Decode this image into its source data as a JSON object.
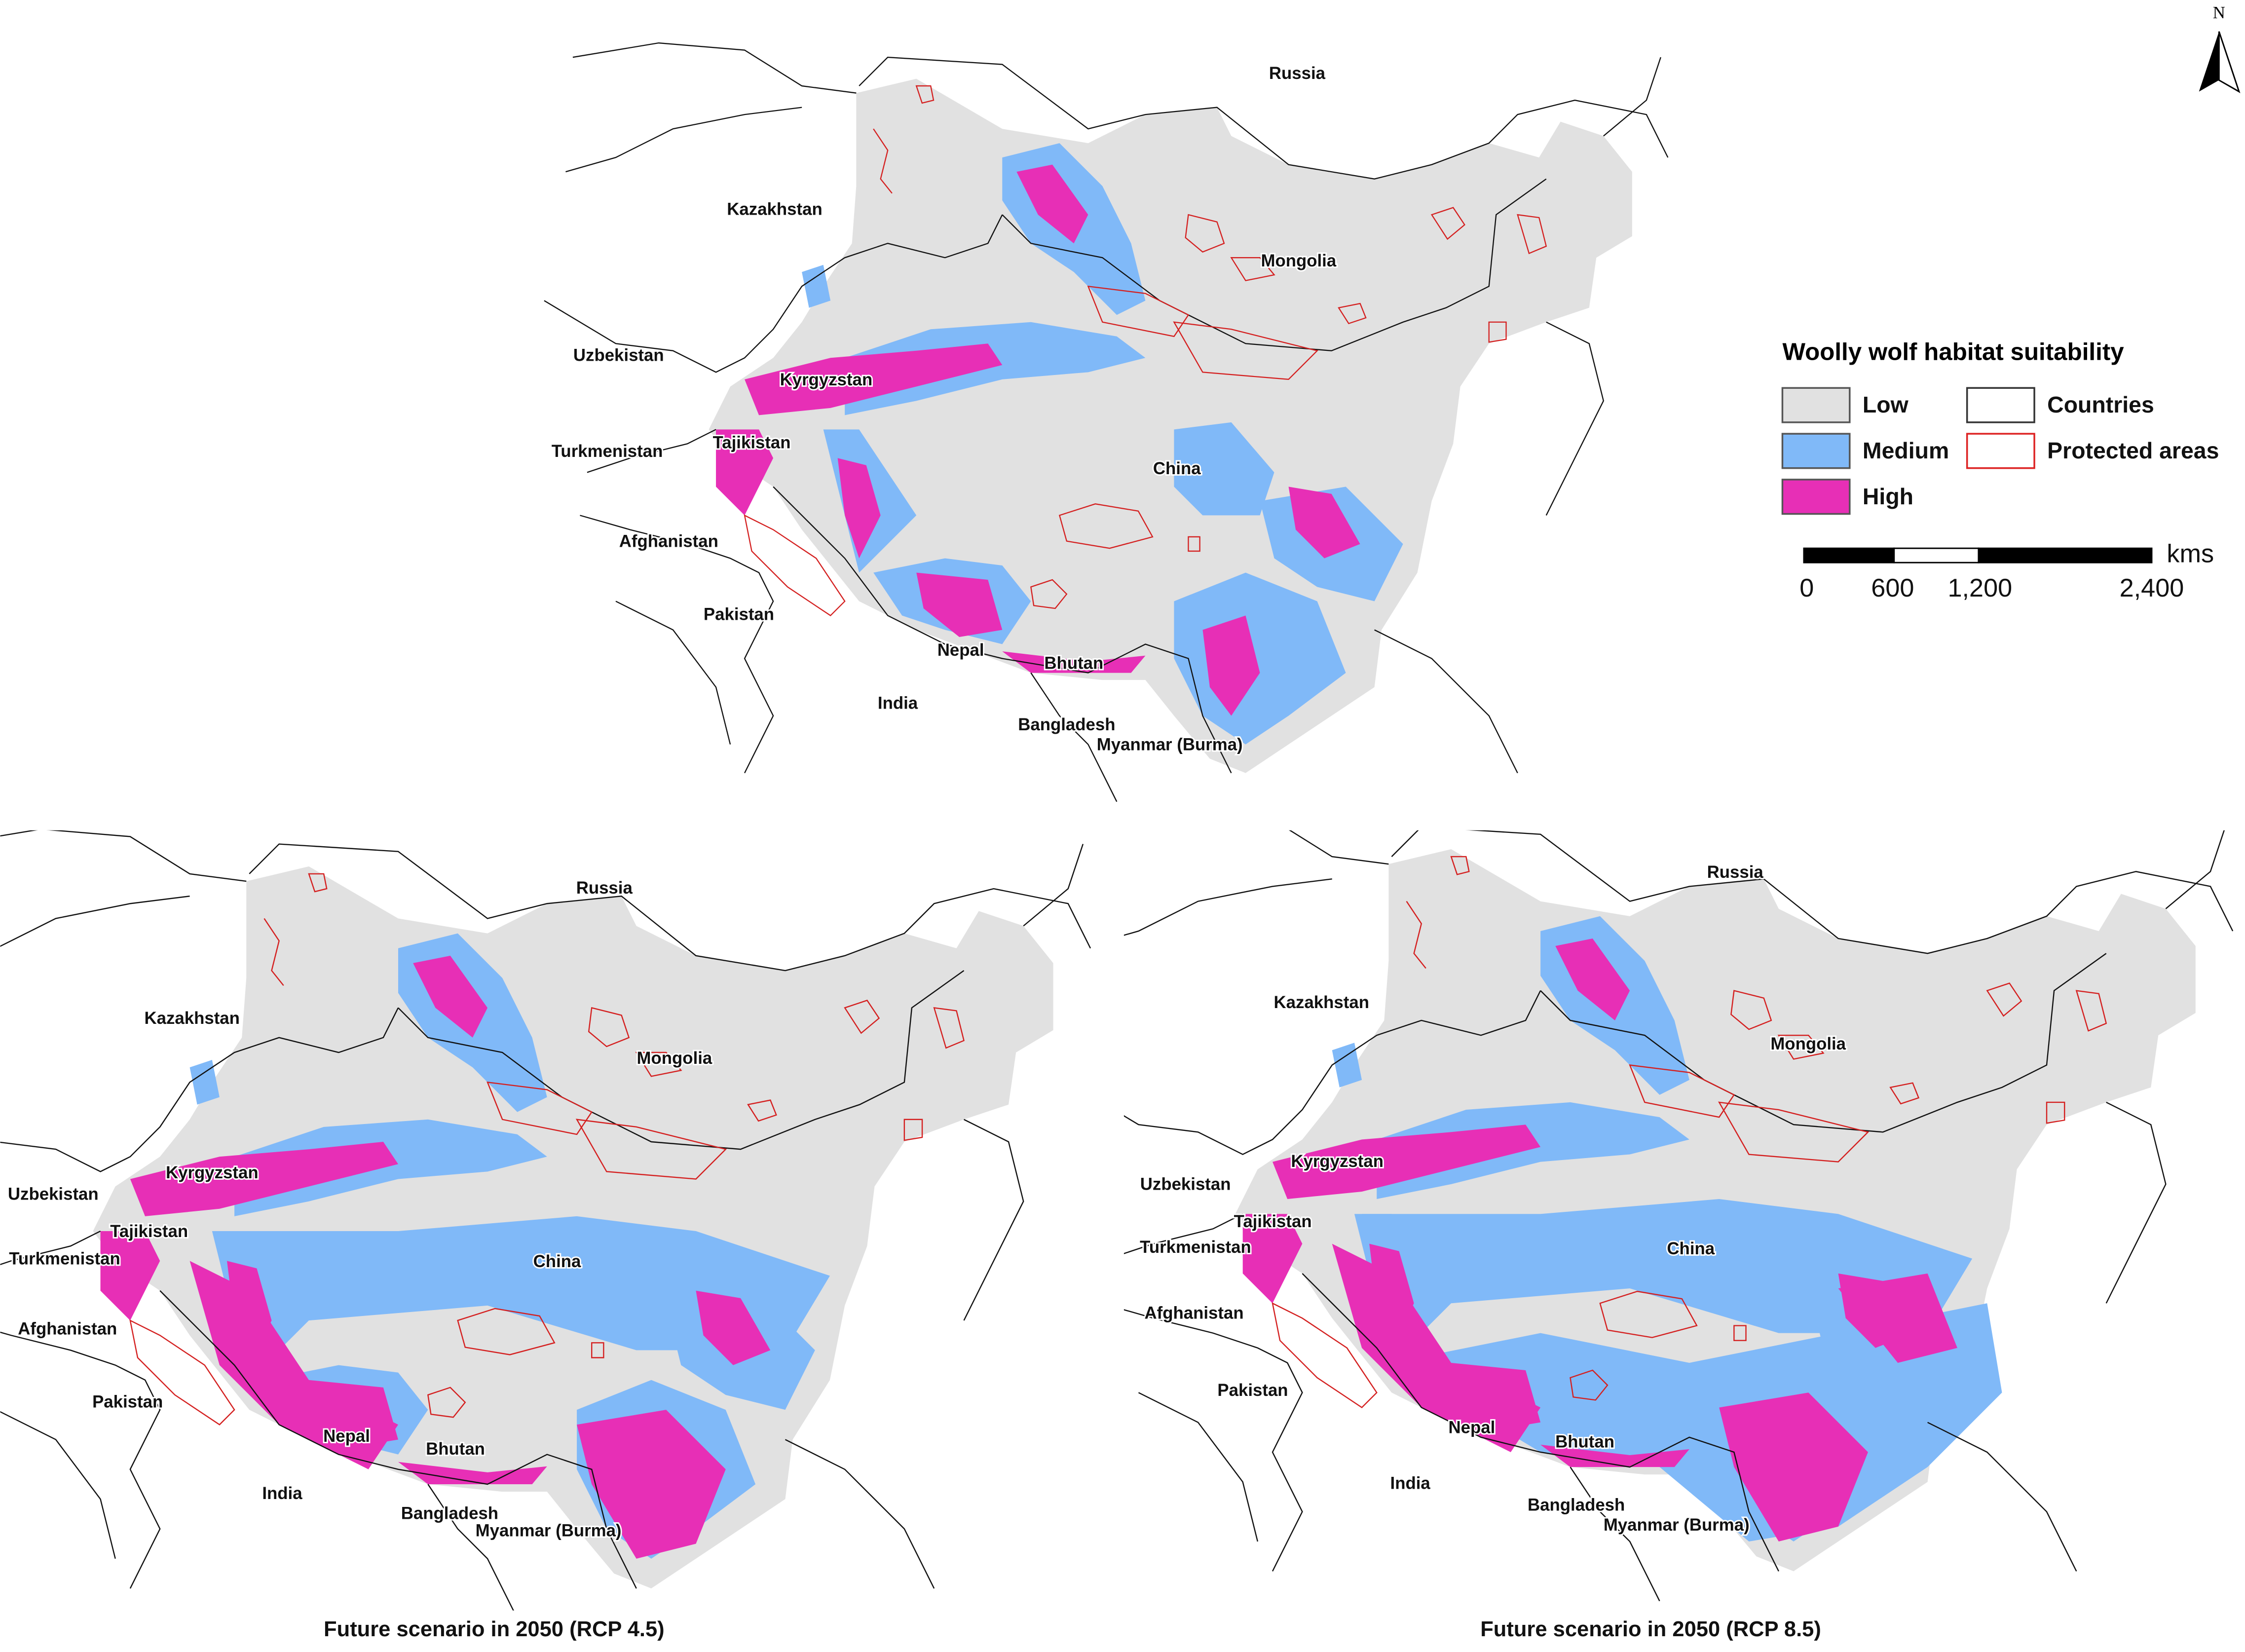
{
  "north_label": "N",
  "legend": {
    "title": "Woolly wolf habitat suitability",
    "items": [
      {
        "label": "Low",
        "color": "#e1e1e1"
      },
      {
        "label": "Medium",
        "color": "#80b9f8"
      },
      {
        "label": "High",
        "color": "#e72fb6"
      },
      {
        "label": "Countries"
      },
      {
        "label": "Protected areas"
      }
    ]
  },
  "scale_bar": {
    "unit": "kms",
    "labels": [
      "0",
      "600",
      "1,200",
      "2,400"
    ]
  },
  "maps": [
    {
      "labels": [
        "Russia",
        "Kazakhstan",
        "Mongolia",
        "Uzbekistan",
        "Kyrgyzstan",
        "Turkmenistan",
        "Tajikistan",
        "China",
        "Afghanistan",
        "Pakistan",
        "Nepal",
        "Bhutan",
        "India",
        "Bangladesh",
        "Myanmar (Burma)"
      ]
    },
    {
      "title": "Future scenario in 2050 (RCP 4.5)",
      "labels": [
        "Russia",
        "Kazakhstan",
        "Mongolia",
        "Uzbekistan",
        "Kyrgyzstan",
        "Turkmenistan",
        "Tajikistan",
        "China",
        "Afghanistan",
        "Pakistan",
        "Nepal",
        "Bhutan",
        "India",
        "Bangladesh",
        "Myanmar (Burma)"
      ]
    },
    {
      "title": "Future scenario in 2050 (RCP 8.5)",
      "labels": [
        "Russia",
        "Kazakhstan",
        "Mongolia",
        "Uzbekistan",
        "Kyrgyzstan",
        "Turkmenistan",
        "Tajikistan",
        "China",
        "Afghanistan",
        "Pakistan",
        "Nepal",
        "Bhutan",
        "India",
        "Bangladesh",
        "Myanmar (Burma)"
      ]
    }
  ]
}
